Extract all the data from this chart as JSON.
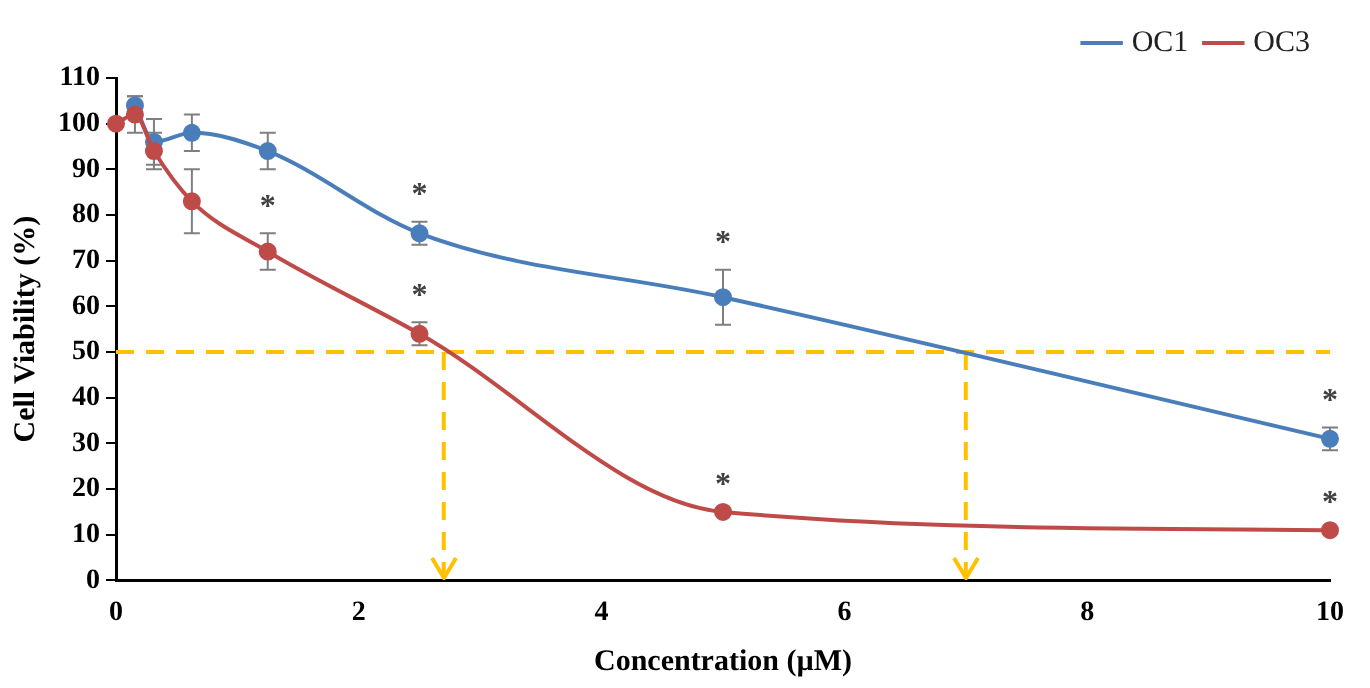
{
  "chart_data": {
    "type": "line",
    "xlabel": "Concentration (µM)",
    "ylabel": "Cell Viability (%)",
    "x": [
      0,
      0.156,
      0.3125,
      0.625,
      1.25,
      2.5,
      5,
      10
    ],
    "series": [
      {
        "name": "OC1",
        "color": "#4a7ebb",
        "values": [
          null,
          104,
          96,
          98,
          94,
          76,
          62,
          31
        ],
        "errors": [
          null,
          2,
          5,
          4,
          4,
          2.5,
          6,
          2.5
        ]
      },
      {
        "name": "OC3",
        "color": "#be4b48",
        "values": [
          100,
          102,
          94,
          83,
          72,
          54,
          15,
          11
        ],
        "errors": [
          null,
          4,
          4,
          7,
          4,
          2.5,
          null,
          null
        ]
      }
    ],
    "xlim": [
      0,
      10
    ],
    "xticks": [
      0,
      2,
      4,
      6,
      8,
      10
    ],
    "ylim": [
      0,
      110
    ],
    "yticks": [
      0,
      10,
      20,
      30,
      40,
      50,
      60,
      70,
      80,
      90,
      100,
      110
    ],
    "grid": false,
    "legend": "top right",
    "marker": "circle",
    "line_style": "solid",
    "ref_lines": [
      {
        "axis": "y",
        "value": 50,
        "color": "#ffc000",
        "line_style": "dashed"
      },
      {
        "axis": "x",
        "value": 2.7,
        "color": "#ffc000",
        "line_style": "dashed"
      },
      {
        "axis": "x",
        "value": 7,
        "color": "#ffc000",
        "line_style": "dashed"
      }
    ],
    "annotations": [
      {
        "text": "*",
        "x": 1.25,
        "y": 72
      },
      {
        "text": "*",
        "x": 2.5,
        "y": 76
      },
      {
        "text": "*",
        "x": 2.5,
        "y": 54
      },
      {
        "text": "*",
        "x": 5,
        "y": 62
      },
      {
        "text": "*",
        "x": 5,
        "y": 15
      },
      {
        "text": "*",
        "x": 10,
        "y": 31
      },
      {
        "text": "*",
        "x": 10,
        "y": 11
      }
    ]
  }
}
